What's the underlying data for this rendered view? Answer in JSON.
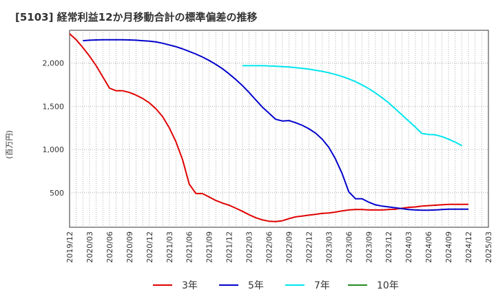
{
  "title": "[5103]  経常利益12か月移動合計の標準偏差の推移",
  "chart_data": {
    "type": "line",
    "ylabel": "(百万円)",
    "xlim": [
      "2019-12",
      "2025-03"
    ],
    "ylim": [
      100,
      2380
    ],
    "y_ticks": [
      500,
      1000,
      1500,
      2000
    ],
    "y_tick_labels": [
      "500",
      "1,000",
      "1,500",
      "2,000"
    ],
    "x_tick_labels": [
      "2019/12",
      "2020/03",
      "2020/06",
      "2020/09",
      "2020/12",
      "2021/03",
      "2021/06",
      "2021/09",
      "2021/12",
      "2022/03",
      "2022/06",
      "2022/09",
      "2022/12",
      "2023/03",
      "2023/06",
      "2023/09",
      "2023/12",
      "2024/03",
      "2024/06",
      "2024/09",
      "2024/12",
      "2025/03"
    ],
    "grid": "vertical-dotted-monthly + horizontal-dotted",
    "legend_position": "bottom",
    "series": [
      {
        "name": "3年",
        "color": "#e00000",
        "points": [
          [
            "2019-12",
            2340
          ],
          [
            "2020-01",
            2270
          ],
          [
            "2020-02",
            2180
          ],
          [
            "2020-03",
            2080
          ],
          [
            "2020-04",
            1970
          ],
          [
            "2020-05",
            1840
          ],
          [
            "2020-06",
            1710
          ],
          [
            "2020-07",
            1680
          ],
          [
            "2020-08",
            1680
          ],
          [
            "2020-09",
            1660
          ],
          [
            "2020-10",
            1630
          ],
          [
            "2020-11",
            1590
          ],
          [
            "2020-12",
            1540
          ],
          [
            "2021-01",
            1470
          ],
          [
            "2021-02",
            1380
          ],
          [
            "2021-03",
            1250
          ],
          [
            "2021-04",
            1090
          ],
          [
            "2021-05",
            880
          ],
          [
            "2021-06",
            600
          ],
          [
            "2021-07",
            490
          ],
          [
            "2021-08",
            490
          ],
          [
            "2021-09",
            450
          ],
          [
            "2021-10",
            410
          ],
          [
            "2021-11",
            380
          ],
          [
            "2021-12",
            355
          ],
          [
            "2022-01",
            320
          ],
          [
            "2022-02",
            285
          ],
          [
            "2022-03",
            245
          ],
          [
            "2022-04",
            210
          ],
          [
            "2022-05",
            185
          ],
          [
            "2022-06",
            170
          ],
          [
            "2022-07",
            165
          ],
          [
            "2022-08",
            175
          ],
          [
            "2022-09",
            200
          ],
          [
            "2022-10",
            220
          ],
          [
            "2022-11",
            230
          ],
          [
            "2022-12",
            240
          ],
          [
            "2023-01",
            250
          ],
          [
            "2023-02",
            260
          ],
          [
            "2023-03",
            265
          ],
          [
            "2023-04",
            275
          ],
          [
            "2023-05",
            290
          ],
          [
            "2023-06",
            300
          ],
          [
            "2023-07",
            305
          ],
          [
            "2023-08",
            305
          ],
          [
            "2023-09",
            300
          ],
          [
            "2023-10",
            300
          ],
          [
            "2023-11",
            300
          ],
          [
            "2023-12",
            305
          ],
          [
            "2024-01",
            310
          ],
          [
            "2024-02",
            320
          ],
          [
            "2024-03",
            330
          ],
          [
            "2024-04",
            335
          ],
          [
            "2024-05",
            345
          ],
          [
            "2024-06",
            350
          ],
          [
            "2024-07",
            355
          ],
          [
            "2024-08",
            360
          ],
          [
            "2024-09",
            365
          ],
          [
            "2024-10",
            365
          ],
          [
            "2024-11",
            365
          ],
          [
            "2024-12",
            365
          ]
        ]
      },
      {
        "name": "5年",
        "color": "#0000cc",
        "points": [
          [
            "2020-02",
            2260
          ],
          [
            "2020-03",
            2265
          ],
          [
            "2020-04",
            2268
          ],
          [
            "2020-05",
            2270
          ],
          [
            "2020-06",
            2270
          ],
          [
            "2020-07",
            2270
          ],
          [
            "2020-08",
            2270
          ],
          [
            "2020-09",
            2268
          ],
          [
            "2020-10",
            2265
          ],
          [
            "2020-11",
            2260
          ],
          [
            "2020-12",
            2255
          ],
          [
            "2021-01",
            2245
          ],
          [
            "2021-02",
            2230
          ],
          [
            "2021-03",
            2210
          ],
          [
            "2021-04",
            2190
          ],
          [
            "2021-05",
            2165
          ],
          [
            "2021-06",
            2135
          ],
          [
            "2021-07",
            2105
          ],
          [
            "2021-08",
            2070
          ],
          [
            "2021-09",
            2030
          ],
          [
            "2021-10",
            1985
          ],
          [
            "2021-11",
            1935
          ],
          [
            "2021-12",
            1875
          ],
          [
            "2022-01",
            1810
          ],
          [
            "2022-02",
            1740
          ],
          [
            "2022-03",
            1660
          ],
          [
            "2022-04",
            1575
          ],
          [
            "2022-05",
            1490
          ],
          [
            "2022-06",
            1420
          ],
          [
            "2022-07",
            1350
          ],
          [
            "2022-08",
            1330
          ],
          [
            "2022-09",
            1335
          ],
          [
            "2022-10",
            1310
          ],
          [
            "2022-11",
            1280
          ],
          [
            "2022-12",
            1240
          ],
          [
            "2023-01",
            1190
          ],
          [
            "2023-02",
            1120
          ],
          [
            "2023-03",
            1025
          ],
          [
            "2023-04",
            890
          ],
          [
            "2023-05",
            720
          ],
          [
            "2023-06",
            510
          ],
          [
            "2023-07",
            430
          ],
          [
            "2023-08",
            430
          ],
          [
            "2023-09",
            390
          ],
          [
            "2023-10",
            360
          ],
          [
            "2023-11",
            345
          ],
          [
            "2023-12",
            335
          ],
          [
            "2024-01",
            325
          ],
          [
            "2024-02",
            315
          ],
          [
            "2024-03",
            305
          ],
          [
            "2024-04",
            300
          ],
          [
            "2024-05",
            298
          ],
          [
            "2024-06",
            298
          ],
          [
            "2024-07",
            300
          ],
          [
            "2024-08",
            305
          ],
          [
            "2024-09",
            310
          ],
          [
            "2024-10",
            310
          ],
          [
            "2024-11",
            310
          ],
          [
            "2024-12",
            310
          ]
        ]
      },
      {
        "name": "7年",
        "color": "#00e5ee",
        "points": [
          [
            "2022-02",
            1970
          ],
          [
            "2022-03",
            1970
          ],
          [
            "2022-04",
            1970
          ],
          [
            "2022-05",
            1970
          ],
          [
            "2022-06",
            1968
          ],
          [
            "2022-07",
            1965
          ],
          [
            "2022-08",
            1960
          ],
          [
            "2022-09",
            1955
          ],
          [
            "2022-10",
            1948
          ],
          [
            "2022-11",
            1940
          ],
          [
            "2022-12",
            1930
          ],
          [
            "2023-01",
            1918
          ],
          [
            "2023-02",
            1905
          ],
          [
            "2023-03",
            1888
          ],
          [
            "2023-04",
            1868
          ],
          [
            "2023-05",
            1845
          ],
          [
            "2023-06",
            1818
          ],
          [
            "2023-07",
            1785
          ],
          [
            "2023-08",
            1748
          ],
          [
            "2023-09",
            1705
          ],
          [
            "2023-10",
            1655
          ],
          [
            "2023-11",
            1600
          ],
          [
            "2023-12",
            1540
          ],
          [
            "2024-01",
            1470
          ],
          [
            "2024-02",
            1400
          ],
          [
            "2024-03",
            1330
          ],
          [
            "2024-04",
            1260
          ],
          [
            "2024-05",
            1185
          ],
          [
            "2024-06",
            1175
          ],
          [
            "2024-07",
            1170
          ],
          [
            "2024-08",
            1150
          ],
          [
            "2024-09",
            1120
          ],
          [
            "2024-10",
            1085
          ],
          [
            "2024-11",
            1045
          ]
        ]
      },
      {
        "name": "10年",
        "color": "#228b22",
        "points": []
      }
    ]
  }
}
